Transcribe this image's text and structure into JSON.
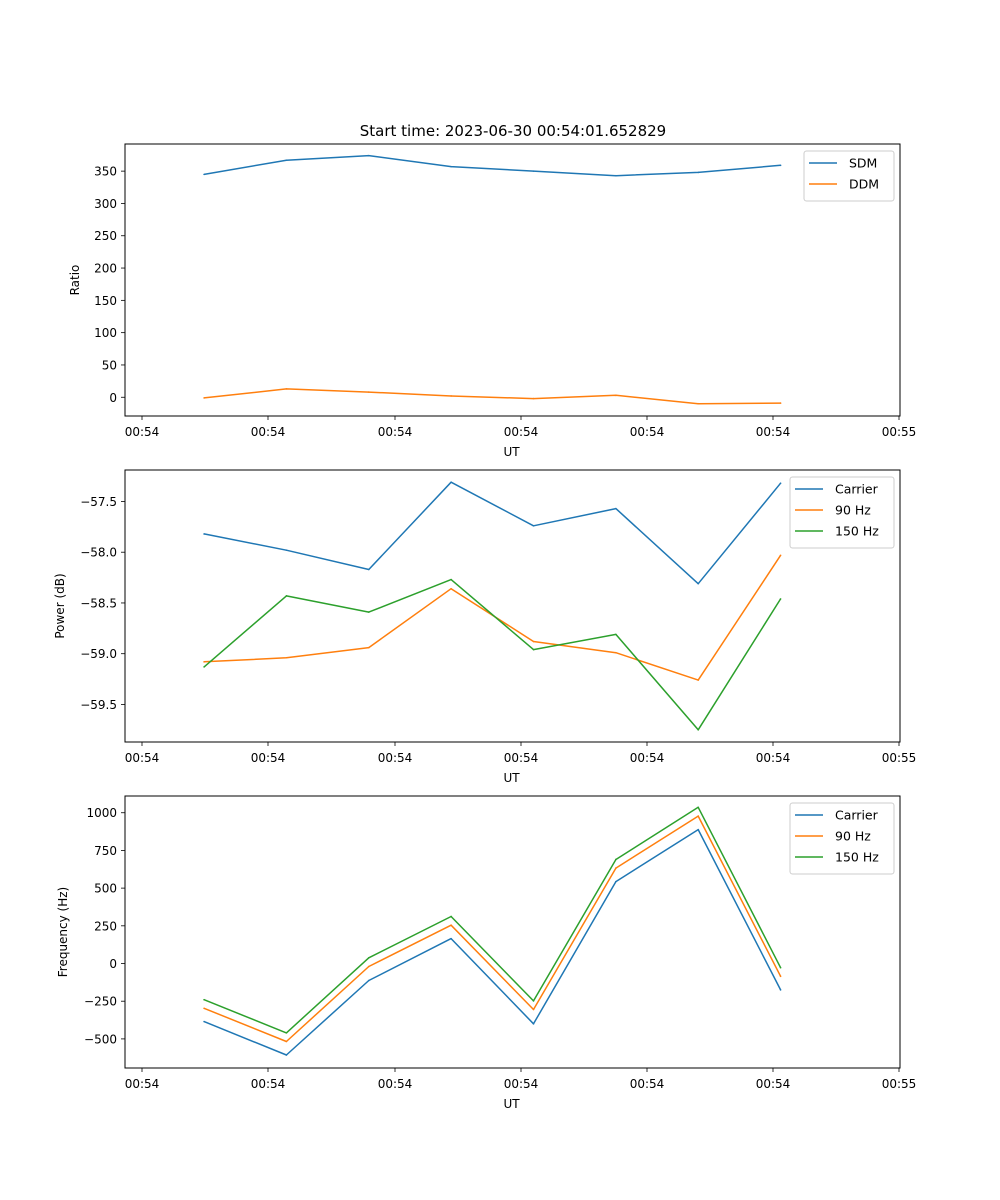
{
  "title": "Start time: 2023-06-30 00:54:01.652829",
  "colors": {
    "c0": "#1f77b4",
    "c1": "#ff7f0e",
    "c2": "#2ca02c"
  },
  "chart_data": [
    {
      "type": "line",
      "xlabel": "UT",
      "ylabel": "Ratio",
      "xticks": [
        "00:54",
        "00:54",
        "00:54",
        "00:54",
        "00:54",
        "00:54",
        "00:55"
      ],
      "xlim": [
        -0.96,
        8.45
      ],
      "ylim": [
        -29,
        392
      ],
      "yticks": [
        0,
        50,
        100,
        150,
        200,
        250,
        300,
        350
      ],
      "ytick_labels": [
        "0",
        "50",
        "100",
        "150",
        "200",
        "250",
        "300",
        "350"
      ],
      "legend_position": "upper right",
      "x": [
        0,
        1,
        2,
        3,
        4,
        5,
        6,
        7
      ],
      "series": [
        {
          "name": "SDM",
          "color": "#1f77b4",
          "values": [
            345,
            367,
            374,
            357,
            350,
            343,
            348,
            359
          ]
        },
        {
          "name": "DDM",
          "color": "#ff7f0e",
          "values": [
            -1,
            13,
            8,
            2,
            -2,
            3,
            -10,
            -9
          ]
        }
      ]
    },
    {
      "type": "line",
      "xlabel": "UT",
      "ylabel": "Power (dB)",
      "xticks": [
        "00:54",
        "00:54",
        "00:54",
        "00:54",
        "00:54",
        "00:54",
        "00:55"
      ],
      "xlim": [
        -0.96,
        8.45
      ],
      "ylim": [
        -59.87,
        -57.19
      ],
      "yticks": [
        -59.5,
        -59.0,
        -58.5,
        -58.0,
        -57.5
      ],
      "ytick_labels": [
        "−59.5",
        "−59.0",
        "−58.5",
        "−58.0",
        "−57.5"
      ],
      "legend_position": "upper right",
      "x": [
        0,
        1,
        2,
        3,
        4,
        5,
        6,
        7
      ],
      "series": [
        {
          "name": "Carrier",
          "color": "#1f77b4",
          "values": [
            -57.82,
            -57.98,
            -58.17,
            -57.31,
            -57.74,
            -57.57,
            -58.31,
            -57.32
          ]
        },
        {
          "name": "90 Hz",
          "color": "#ff7f0e",
          "values": [
            -59.08,
            -59.04,
            -58.94,
            -58.36,
            -58.88,
            -58.99,
            -59.26,
            -58.03
          ]
        },
        {
          "name": "150 Hz",
          "color": "#2ca02c",
          "values": [
            -59.13,
            -58.43,
            -58.59,
            -58.27,
            -58.96,
            -58.81,
            -59.75,
            -58.46
          ]
        }
      ]
    },
    {
      "type": "line",
      "xlabel": "UT",
      "ylabel": "Frequency (Hz)",
      "xticks": [
        "00:54",
        "00:54",
        "00:54",
        "00:54",
        "00:54",
        "00:54",
        "00:55"
      ],
      "xlim": [
        -0.96,
        8.45
      ],
      "ylim": [
        -693,
        1111
      ],
      "yticks": [
        -500,
        -250,
        0,
        250,
        500,
        750,
        1000
      ],
      "ytick_labels": [
        "−500",
        "−250",
        "0",
        "250",
        "500",
        "750",
        "1000"
      ],
      "legend_position": "upper right",
      "x": [
        0,
        1,
        2,
        3,
        4,
        5,
        6,
        7
      ],
      "series": [
        {
          "name": "Carrier",
          "color": "#1f77b4",
          "values": [
            -385,
            -607,
            -113,
            165,
            -400,
            543,
            888,
            -175
          ]
        },
        {
          "name": "90 Hz",
          "color": "#ff7f0e",
          "values": [
            -297,
            -517,
            -20,
            254,
            -305,
            633,
            978,
            -85
          ]
        },
        {
          "name": "150 Hz",
          "color": "#2ca02c",
          "values": [
            -240,
            -460,
            38,
            312,
            -248,
            690,
            1036,
            -28
          ]
        }
      ]
    }
  ]
}
